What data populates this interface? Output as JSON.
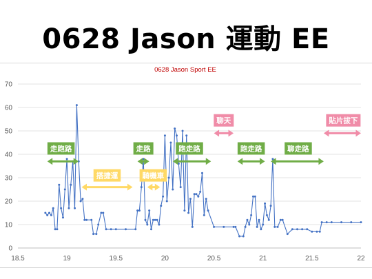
{
  "slide_title": "0628 Jason 運動 EE",
  "chart_data": {
    "type": "line",
    "title": "0628 Jason Sport EE",
    "xlim": [
      18.5,
      22
    ],
    "ylim": [
      0,
      70
    ],
    "xticks": [
      18.5,
      19,
      19.5,
      20,
      20.5,
      21,
      21.5,
      22
    ],
    "yticks": [
      0,
      10,
      20,
      30,
      40,
      50,
      60,
      70
    ],
    "xtick_labels": [
      "18.5",
      "19",
      "19.5",
      "20",
      "20.5",
      "21",
      "21.5",
      "22"
    ],
    "ytick_labels": [
      "0",
      "10",
      "20",
      "30",
      "40",
      "50",
      "60",
      "70"
    ],
    "grid": true,
    "series_color": "#4472c4",
    "series": [
      {
        "x": [
          18.78,
          18.8,
          18.82,
          18.84,
          18.86,
          18.88,
          18.9,
          18.92,
          18.94,
          18.96,
          18.98,
          19.0,
          19.02,
          19.04,
          19.06,
          19.08,
          19.1,
          19.12,
          19.14,
          19.16,
          19.18,
          19.2,
          19.25,
          19.27,
          19.3,
          19.32,
          19.35,
          19.37,
          19.4,
          19.45,
          19.5,
          19.6,
          19.7,
          19.72,
          19.74,
          19.76,
          19.78,
          19.8,
          19.82,
          19.84,
          19.86,
          19.88,
          19.9,
          19.92,
          19.94,
          19.96,
          19.98,
          20.0,
          20.02,
          20.04,
          20.06,
          20.08,
          20.1,
          20.12,
          20.14,
          20.16,
          20.18,
          20.2,
          20.22,
          20.24,
          20.26,
          20.28,
          20.3,
          20.32,
          20.34,
          20.36,
          20.38,
          20.4,
          20.42,
          20.44,
          20.5,
          20.6,
          20.7,
          20.72,
          20.76,
          20.8,
          20.82,
          20.84,
          20.86,
          20.88,
          20.9,
          20.92,
          20.94,
          20.96,
          20.98,
          21.0,
          21.02,
          21.04,
          21.06,
          21.08,
          21.1,
          21.12,
          21.15,
          21.18,
          21.2,
          21.25,
          21.3,
          21.35,
          21.4,
          21.45,
          21.5,
          21.55,
          21.58,
          21.6,
          21.65,
          21.7,
          21.8,
          21.9,
          22.0
        ],
        "y": [
          15,
          14,
          15,
          14,
          17,
          8,
          8,
          27,
          17,
          13,
          25,
          38,
          17,
          27,
          37,
          17,
          61,
          37,
          20,
          21,
          12,
          12,
          12,
          6,
          6,
          10,
          15,
          15,
          8,
          8,
          8,
          8,
          8,
          16,
          16,
          26,
          38,
          12,
          10,
          16,
          8,
          12,
          12,
          12,
          10,
          18,
          22,
          48,
          20,
          30,
          45,
          25,
          51,
          48,
          36,
          26,
          50,
          16,
          48,
          15,
          21,
          9,
          23,
          23,
          22,
          24,
          32,
          14,
          21,
          16,
          9,
          9,
          9,
          9,
          5,
          5,
          9,
          12,
          10,
          14,
          22,
          22,
          9,
          12,
          8,
          10,
          19,
          14,
          12,
          18,
          38,
          9,
          9,
          12,
          12,
          6,
          8,
          8,
          8,
          8,
          7,
          7,
          7,
          11,
          11,
          11,
          11,
          11,
          11
        ]
      }
    ],
    "annotations": [
      {
        "text": "走跑路",
        "color": "#70ad47",
        "x1": 18.8,
        "x2": 19.12,
        "y": 37,
        "label_x": 18.94,
        "label_y": 42.5
      },
      {
        "text": "搭捷運",
        "color": "#ffd966",
        "x1": 19.15,
        "x2": 19.67,
        "y": 26,
        "label_x": 19.41,
        "label_y": 31
      },
      {
        "text": "走路",
        "color": "#70ad47",
        "x1": 19.72,
        "x2": 19.84,
        "y": 37,
        "label_x": 19.78,
        "label_y": 42.5
      },
      {
        "text": "騎機車",
        "color": "#ffd966",
        "x1": 19.82,
        "x2": 19.95,
        "y": 26,
        "label_x": 19.88,
        "label_y": 31
      },
      {
        "text": "跑走路",
        "color": "#70ad47",
        "x1": 20.08,
        "x2": 20.47,
        "y": 37,
        "label_x": 20.25,
        "label_y": 42.5
      },
      {
        "text": "聊天",
        "color": "#f08ca8",
        "x1": 20.5,
        "x2": 20.7,
        "y": 49,
        "label_x": 20.6,
        "label_y": 54.5
      },
      {
        "text": "跑走路",
        "color": "#70ad47",
        "x1": 20.74,
        "x2": 21.02,
        "y": 37,
        "label_x": 20.88,
        "label_y": 42.5
      },
      {
        "text": "聊走路",
        "color": "#70ad47",
        "x1": 21.08,
        "x2": 21.62,
        "y": 37,
        "label_x": 21.36,
        "label_y": 42.5
      },
      {
        "text": "貼片拔下",
        "color": "#f08ca8",
        "x1": 21.62,
        "x2": 22.0,
        "y": 49,
        "label_x": 21.82,
        "label_y": 54.5
      }
    ]
  }
}
